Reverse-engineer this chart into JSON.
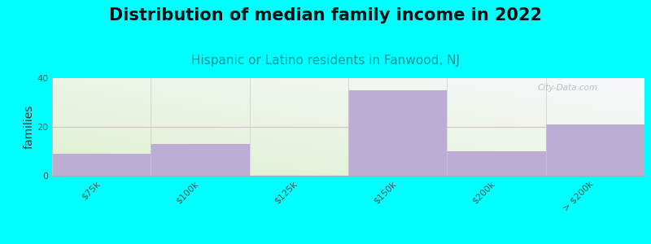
{
  "title": "Distribution of median family income in 2022",
  "subtitle": "Hispanic or Latino residents in Fanwood, NJ",
  "ylabel": "families",
  "categories": [
    "$75k",
    "$100k",
    "$125k",
    "$150k",
    "$200k",
    "> $200k"
  ],
  "values": [
    9,
    13,
    0,
    35,
    10,
    21
  ],
  "bar_color": "#bbadd4",
  "background_outer": "#00FFFF",
  "ylim": [
    0,
    40
  ],
  "yticks": [
    0,
    20,
    40
  ],
  "title_fontsize": 15,
  "subtitle_fontsize": 11,
  "ylabel_fontsize": 10,
  "tick_label_fontsize": 8,
  "watermark_text": "City-Data.com",
  "watermark_color": "#aab8c8",
  "grid_color": "#d8c0c8",
  "plot_bg_left_color": "#dff0d0",
  "plot_bg_right_color": "#f5f5f8"
}
